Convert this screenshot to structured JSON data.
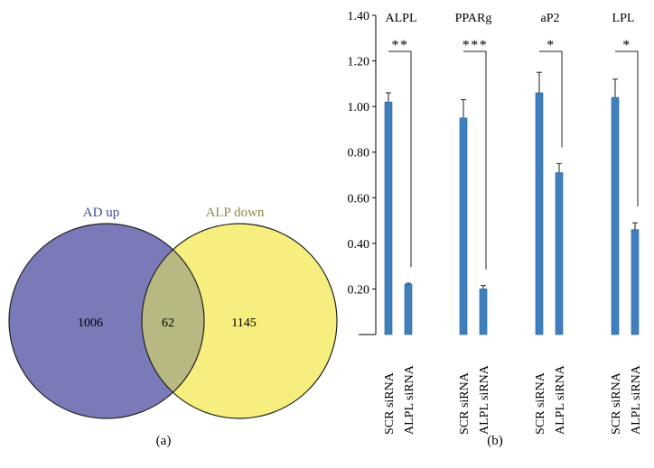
{
  "panels": {
    "a_label": "(a)",
    "b_label": "(b)"
  },
  "colors": {
    "venn_left": "#7a7ab8",
    "venn_right": "#f6ee7e",
    "venn_overlap": "#b8b882",
    "venn_left_label": "#3e4da3",
    "venn_right_label": "#8e8a4a",
    "bar": "#3f7fbe",
    "bar_edge": "#245f97",
    "axis": "#000000"
  },
  "chart_data": [
    {
      "type": "venn",
      "panel": "(a)",
      "sets": [
        {
          "name": "AD up",
          "only": "1006"
        },
        {
          "name": "ALP down",
          "only": "1145"
        }
      ],
      "intersection": "62"
    },
    {
      "type": "bar",
      "panel": "(b)",
      "ylim": [
        0,
        1.4
      ],
      "yticks": [
        "0.20",
        "0.40",
        "0.60",
        "0.80",
        "1.00",
        "1.20",
        "1.40"
      ],
      "categories": [
        "SCR siRNA",
        "ALPL siRNA"
      ],
      "groups": [
        {
          "name": "ALPL",
          "values": [
            1.02,
            0.22
          ],
          "errors": [
            0.04,
            0.005
          ],
          "significance": "**"
        },
        {
          "name": "PPARg",
          "values": [
            0.95,
            0.2
          ],
          "errors": [
            0.08,
            0.015
          ],
          "significance": "***"
        },
        {
          "name": "aP2",
          "values": [
            1.06,
            0.71
          ],
          "errors": [
            0.09,
            0.04
          ],
          "significance": "*"
        },
        {
          "name": "LPL",
          "values": [
            1.04,
            0.46
          ],
          "errors": [
            0.08,
            0.03
          ],
          "significance": "*"
        }
      ]
    }
  ]
}
